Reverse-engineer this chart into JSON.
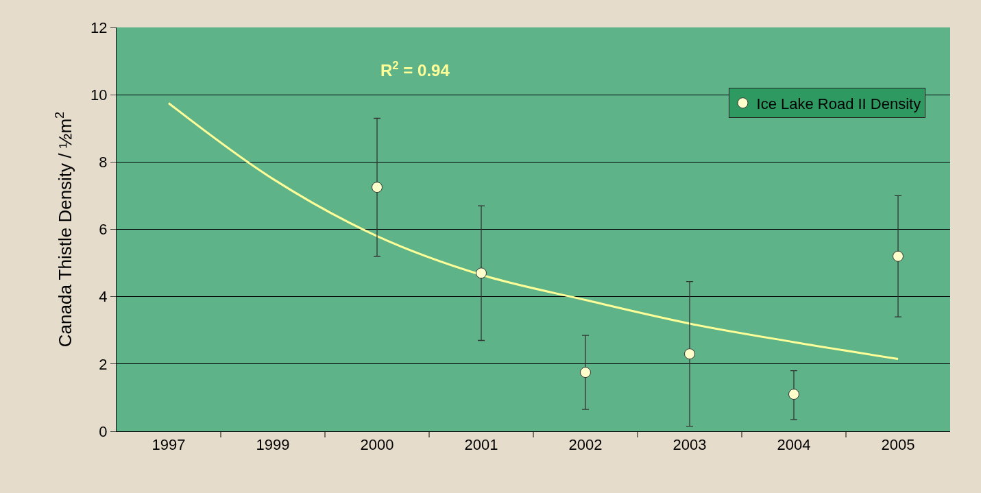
{
  "chart_data": {
    "type": "scatter",
    "ylabel": "Canada Thistle Density / ½m$^{2}$",
    "categories": [
      "1997",
      "1999",
      "2000",
      "2001",
      "2002",
      "2003",
      "2004",
      "2005"
    ],
    "series": [
      {
        "name": "Ice Lake Road II Density",
        "color": "#ffffcc",
        "marker": "circle",
        "values": [
          null,
          null,
          7.25,
          4.7,
          1.75,
          2.3,
          1.1,
          5.2
        ],
        "errors": [
          null,
          null,
          [
            5.2,
            9.3
          ],
          [
            2.7,
            6.7
          ],
          [
            0.65,
            2.85
          ],
          [
            0.15,
            4.45
          ],
          [
            0.35,
            1.8
          ],
          [
            3.4,
            7.0
          ]
        ]
      },
      {
        "type": "line",
        "color": "#ffff99",
        "marker": "none",
        "line_style": "solid",
        "values": [
          9.75,
          7.5,
          5.8,
          4.65,
          3.9,
          3.2,
          2.65,
          2.15
        ]
      }
    ],
    "ylim": [
      0,
      12
    ],
    "yticks": [
      0,
      2,
      4,
      6,
      8,
      10,
      12
    ],
    "grid": "y",
    "legend": "top right",
    "annotations": [
      "R$^{2}$ = 0.94"
    ]
  }
}
